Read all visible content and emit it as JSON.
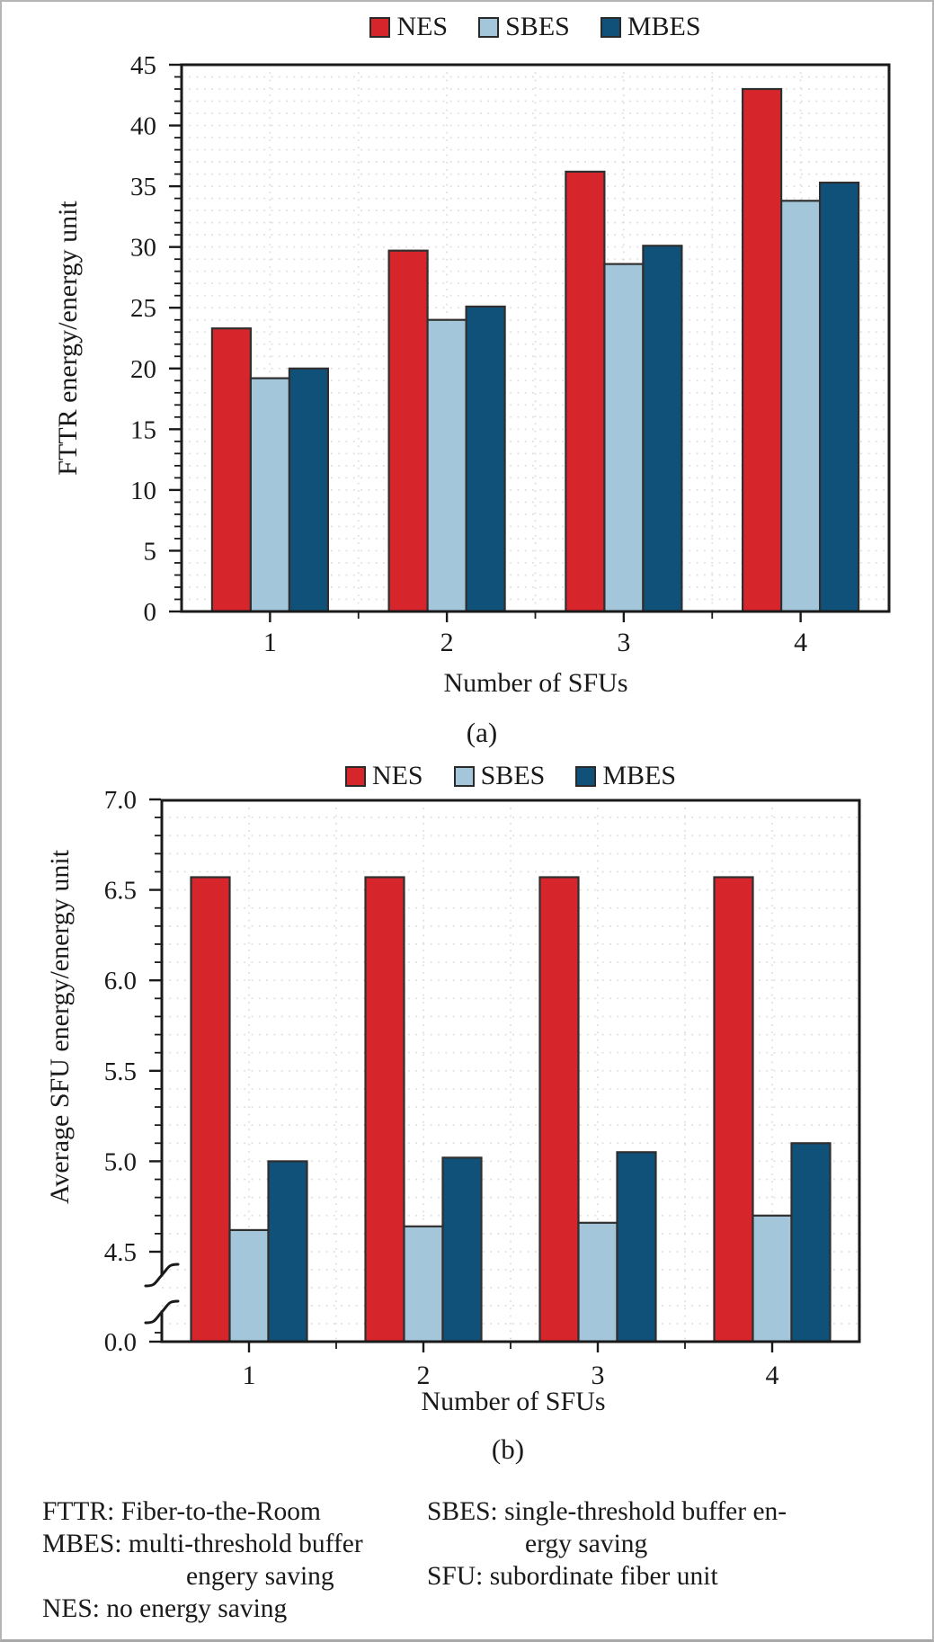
{
  "figure": {
    "description": "Two-panel bar chart comparing energy consumption of FTTR energy-saving schemes",
    "panel_captions": [
      "(a)",
      "(b)"
    ]
  },
  "chart_data": [
    {
      "id": "a",
      "type": "bar",
      "caption": "(a)",
      "xlabel": "Number of SFUs",
      "ylabel": "FTTR energy/energy unit",
      "categories": [
        "1",
        "2",
        "3",
        "4"
      ],
      "ylim": [
        0,
        45
      ],
      "ytick_major_step": 5,
      "ytick_minor_step": 1,
      "grid": "dotted",
      "legend_position": "top",
      "series": [
        {
          "name": "NES",
          "color": "#d6262c",
          "values": [
            23.3,
            29.7,
            36.2,
            43.0
          ]
        },
        {
          "name": "SBES",
          "color": "#a3c6da",
          "values": [
            19.2,
            24.0,
            28.6,
            33.8
          ]
        },
        {
          "name": "MBES",
          "color": "#0f5179",
          "values": [
            20.0,
            25.1,
            30.1,
            35.3
          ]
        }
      ]
    },
    {
      "id": "b",
      "type": "bar",
      "caption": "(b)",
      "xlabel": "Number of SFUs",
      "ylabel": "Average SFU energy/energy unit",
      "categories": [
        "1",
        "2",
        "3",
        "4"
      ],
      "ylim": [
        0,
        7
      ],
      "yticks_labeled": [
        4.5,
        5.0,
        5.5,
        6.0,
        6.5,
        7.0
      ],
      "ybottom_label": "0.0",
      "ytick_minor_step": 0.1,
      "axis_break": {
        "between": [
          0.2,
          4.4
        ]
      },
      "grid": "dotted",
      "legend_position": "top",
      "series": [
        {
          "name": "NES",
          "color": "#d6262c",
          "values": [
            6.57,
            6.57,
            6.57,
            6.57
          ]
        },
        {
          "name": "SBES",
          "color": "#a3c6da",
          "values": [
            4.62,
            4.64,
            4.66,
            4.7
          ]
        },
        {
          "name": "MBES",
          "color": "#0f5179",
          "values": [
            5.0,
            5.02,
            5.05,
            5.1
          ]
        }
      ]
    }
  ],
  "footnotes": {
    "left": [
      "FTTR: Fiber-to-the-Room",
      "MBES: multi-threshold buffer",
      "engery saving",
      "NES: no energy saving"
    ],
    "right": [
      "SBES: single-threshold buffer en-",
      "ergy saving",
      "SFU: subordinate fiber unit"
    ]
  },
  "palette": {
    "nes_red": "#d6262c",
    "sbes_light_blue": "#a3c6da",
    "mbes_dark_blue": "#0f5179",
    "bar_outline": "#2f2f2f",
    "axis_black": "#1a1a1a",
    "grid_dot_gray": "#dedede",
    "page_border_gray": "#b5b5b5"
  }
}
